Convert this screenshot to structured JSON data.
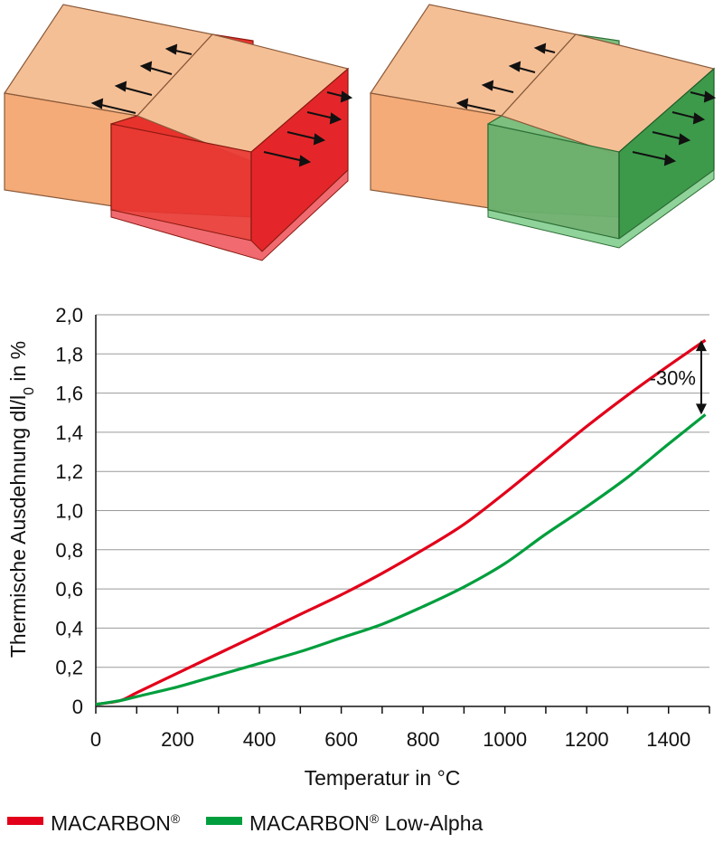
{
  "illustrations": {
    "left_block": {
      "color": "#e8322c",
      "name": "MACARBON"
    },
    "right_block": {
      "color": "#3d9a4a",
      "name": "MACARBON Low-Alpha"
    },
    "base_color": "#f5b485"
  },
  "chart_data": {
    "type": "line",
    "xlabel": "Temperatur in °C",
    "ylabel_main": "Thermische Ausdehnung dl/l",
    "ylabel_sub": "0",
    "ylabel_tail": " in %",
    "xlim": [
      0,
      1500
    ],
    "ylim": [
      0,
      2.0
    ],
    "x_ticks": [
      0,
      200,
      400,
      600,
      800,
      1000,
      1200,
      1400
    ],
    "y_ticks": [
      0,
      0.2,
      0.4,
      0.6,
      0.8,
      1.0,
      1.2,
      1.4,
      1.6,
      1.8,
      2.0
    ],
    "y_tick_labels": [
      "0",
      "0,2",
      "0,4",
      "0,6",
      "0,8",
      "1,0",
      "1,2",
      "1,4",
      "1,6",
      "1,8",
      "2,0"
    ],
    "grid": "horizontal",
    "annotation": {
      "text": "-30%",
      "x": 1480,
      "y_from": 1.87,
      "y_to": 1.49
    },
    "legend": {
      "placement": "bottom"
    },
    "series": [
      {
        "name": "MACARBON®",
        "legend_main": "MACARBON",
        "legend_sup": "®",
        "legend_tail": "",
        "color": "#e2001a",
        "x": [
          0,
          60,
          100,
          200,
          300,
          400,
          500,
          600,
          700,
          800,
          900,
          1000,
          1100,
          1200,
          1300,
          1400,
          1490
        ],
        "y": [
          0.01,
          0.03,
          0.07,
          0.17,
          0.27,
          0.37,
          0.47,
          0.57,
          0.68,
          0.8,
          0.93,
          1.09,
          1.26,
          1.43,
          1.59,
          1.74,
          1.87
        ]
      },
      {
        "name": "MACARBON® Low-Alpha",
        "legend_main": "MACARBON",
        "legend_sup": "®",
        "legend_tail": " Low-Alpha",
        "color": "#009e3d",
        "x": [
          0,
          60,
          100,
          200,
          300,
          400,
          500,
          600,
          700,
          800,
          900,
          1000,
          1100,
          1200,
          1300,
          1400,
          1490
        ],
        "y": [
          0.01,
          0.03,
          0.05,
          0.1,
          0.16,
          0.22,
          0.28,
          0.35,
          0.42,
          0.51,
          0.61,
          0.73,
          0.88,
          1.02,
          1.17,
          1.34,
          1.49
        ]
      }
    ]
  }
}
